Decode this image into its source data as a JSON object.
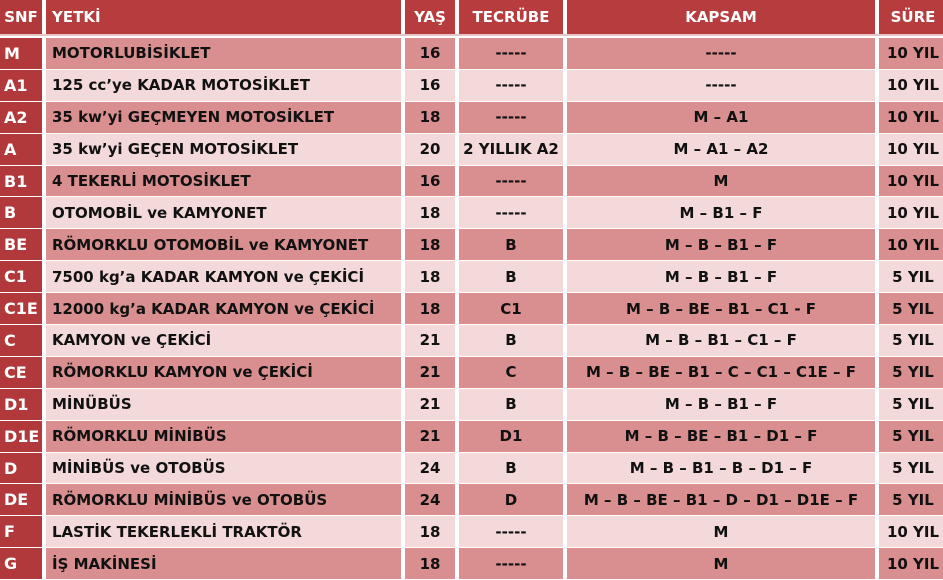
{
  "colors": {
    "header": "#b73c3e",
    "class_column": "#b2393b",
    "row_dark": "#d98f90",
    "row_light": "#f4d9da"
  },
  "headers": [
    "SNF",
    "YETKİ",
    "YAŞ",
    "TECRÜBE",
    "KAPSAM",
    "SÜRE"
  ],
  "rows": [
    [
      "M",
      "MOTORLUBİSİKLET",
      "16",
      "-----",
      "-----",
      "10 YIL"
    ],
    [
      "A1",
      "125 cc’ye KADAR MOTOSİKLET",
      "16",
      "-----",
      "-----",
      "10 YIL"
    ],
    [
      "A2",
      "35 kw’yi GEÇMEYEN MOTOSİKLET",
      "18",
      "-----",
      "M – A1",
      "10 YIL"
    ],
    [
      "A",
      "35 kw’yi GEÇEN MOTOSİKLET",
      "20",
      "2 YILLIK A2",
      "M – A1 – A2",
      "10 YIL"
    ],
    [
      "B1",
      "4 TEKERLİ MOTOSİKLET",
      "16",
      "-----",
      "M",
      "10 YIL"
    ],
    [
      "B",
      "OTOMOBİL ve KAMYONET",
      "18",
      "-----",
      "M – B1 – F",
      "10 YIL"
    ],
    [
      "BE",
      "RÖMORKLU OTOMOBİL ve KAMYONET",
      "18",
      "B",
      "M – B – B1 – F",
      "10 YIL"
    ],
    [
      "C1",
      "7500 kg’a KADAR KAMYON ve ÇEKİCİ",
      "18",
      "B",
      "M – B – B1 – F",
      "5 YIL"
    ],
    [
      "C1E",
      "12000 kg’a KADAR KAMYON ve ÇEKİCİ",
      "18",
      "C1",
      "M – B – BE – B1 – C1 - F",
      "5 YIL"
    ],
    [
      "C",
      "KAMYON ve ÇEKİCİ",
      "21",
      "B",
      "M – B – B1 – C1 – F",
      "5 YIL"
    ],
    [
      "CE",
      "RÖMORKLU KAMYON ve ÇEKİCİ",
      "21",
      "C",
      "M – B – BE – B1 – C – C1 – C1E – F",
      "5 YIL"
    ],
    [
      "D1",
      "MİNÜBÜS",
      "21",
      "B",
      "M – B – B1 – F",
      "5 YIL"
    ],
    [
      "D1E",
      "RÖMORKLU MİNİBÜS",
      "21",
      "D1",
      "M – B – BE – B1 – D1 – F",
      "5 YIL"
    ],
    [
      "D",
      "MİNİBÜS ve OTOBÜS",
      "24",
      "B",
      "M – B – B1 – B – D1 – F",
      "5 YIL"
    ],
    [
      "DE",
      "RÖMORKLU MİNİBÜS ve OTOBÜS",
      "24",
      "D",
      "M – B – BE – B1 – D – D1 – D1E – F",
      "5 YIL"
    ],
    [
      "F",
      "LASTİK TEKERLEKLİ TRAKTÖR",
      "18",
      "-----",
      "M",
      "10 YIL"
    ],
    [
      "G",
      "İŞ MAKİNESİ",
      "18",
      "-----",
      "M",
      "10 YIL"
    ]
  ]
}
